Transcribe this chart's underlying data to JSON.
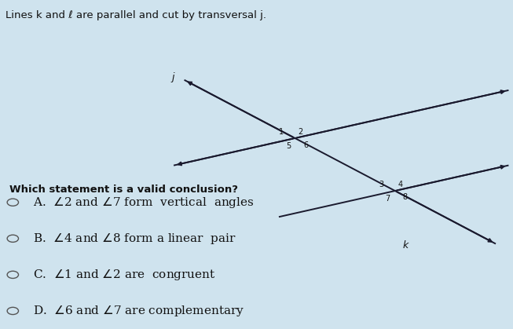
{
  "title": "Lines k and ℓ are parallel and cut by transversal j.",
  "bg_color": "#cfe3ee",
  "question": "Which statement is a valid conclusion?",
  "line_color": "#1a1a2e",
  "label_color": "#111111",
  "ix1": [
    0.575,
    0.58
  ],
  "ix2": [
    0.77,
    0.42
  ],
  "slope_parallel": 0.35,
  "slope_transversal": -0.7
}
